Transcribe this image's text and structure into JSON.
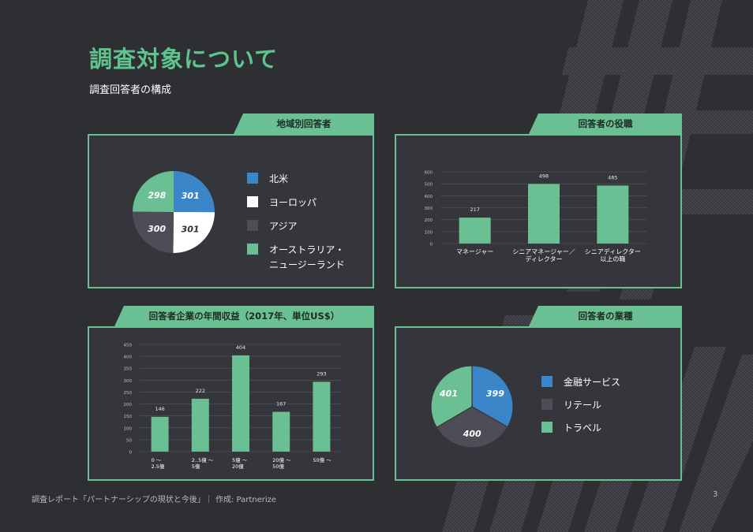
{
  "page": {
    "title": "調査対象について",
    "subtitle": "調査回答者の構成",
    "footer": "調査レポート「パートナーシップの現状と今後」｜ 作成: Partnerize",
    "page_number": "3"
  },
  "colors": {
    "accent": "#5ec48d",
    "blue": "#3a86c8",
    "white": "#ffffff",
    "dark": "#4e4d57",
    "green": "#6bc093"
  },
  "panels": {
    "region": {
      "tab": "地域別回答者"
    },
    "role": {
      "tab": "回答者の役職"
    },
    "revenue": {
      "tab": "回答者企業の年間収益（2017年、単位US$）"
    },
    "industry": {
      "tab": "回答者の業種"
    }
  },
  "chart_data": [
    {
      "id": "region",
      "type": "pie",
      "title": "地域別回答者",
      "labels": [
        "北米",
        "ヨーロッパ",
        "アジア",
        "オーストラリア・\nニュージーランド"
      ],
      "values": [
        301,
        301,
        300,
        298
      ],
      "colors": [
        "#3a86c8",
        "#ffffff",
        "#4e4d57",
        "#6bc093"
      ]
    },
    {
      "id": "role",
      "type": "bar",
      "title": "回答者の役職",
      "categories": [
        "マネージャー",
        "シニアマネージャー／\nディレクター",
        "シニアディレクター\n以上の職"
      ],
      "values": [
        217,
        498,
        485
      ],
      "yticks": [
        0,
        100,
        200,
        300,
        400,
        500,
        600
      ],
      "ylim": [
        0,
        600
      ],
      "color": "#6bc093"
    },
    {
      "id": "revenue",
      "type": "bar",
      "title": "回答者企業の年間収益（2017年、単位US$）",
      "categories": [
        "0 ～\n2.5億",
        "2..5億 ～\n5億",
        "5億 ～\n20億",
        "20億 ～\n50億",
        "50億 ～"
      ],
      "values": [
        146,
        222,
        404,
        167,
        293
      ],
      "yticks": [
        0,
        50,
        100,
        150,
        200,
        250,
        300,
        350,
        400,
        450
      ],
      "ylim": [
        0,
        450
      ],
      "color": "#6bc093"
    },
    {
      "id": "industry",
      "type": "pie",
      "title": "回答者の業種",
      "labels": [
        "金融サービス",
        "リテール",
        "トラベル"
      ],
      "values": [
        399,
        400,
        401
      ],
      "colors": [
        "#3a86c8",
        "#4e4d57",
        "#6bc093"
      ]
    }
  ]
}
